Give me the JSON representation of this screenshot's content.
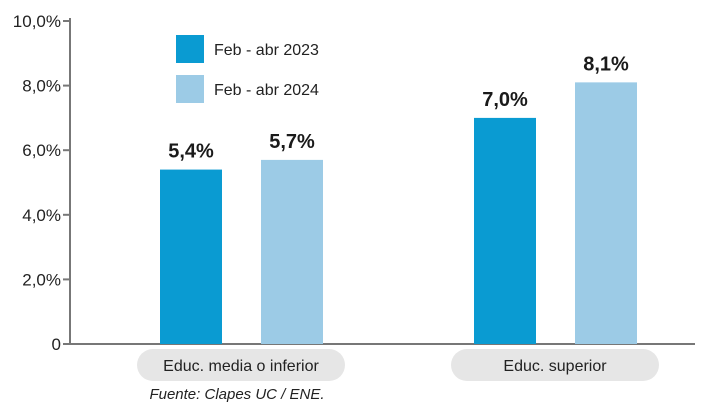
{
  "chart_data": {
    "type": "bar",
    "categories": [
      "Educ. media o inferior",
      "Educ. superior"
    ],
    "series": [
      {
        "name": "Feb - abr 2023",
        "values": [
          5.4,
          7.0
        ],
        "labels": [
          "5,4%",
          "7,0%"
        ],
        "color": "#0a9bd2"
      },
      {
        "name": "Feb - abr 2024",
        "values": [
          5.7,
          8.1
        ],
        "labels": [
          "5,7%",
          "8,1%"
        ],
        "color": "#9ccbe6"
      }
    ],
    "ylim": [
      0,
      10
    ],
    "yticks": [
      0,
      2,
      4,
      6,
      8,
      10
    ],
    "ytick_labels": [
      "0",
      "2,0%",
      "4,0%",
      "6,0%",
      "8,0%",
      "10,0%"
    ],
    "legend": "top-left",
    "grid": false
  },
  "source": "Fuente: Clapes UC / ENE.",
  "colors": {
    "axis": "#777777",
    "category_pill": "#e6e6e6"
  }
}
